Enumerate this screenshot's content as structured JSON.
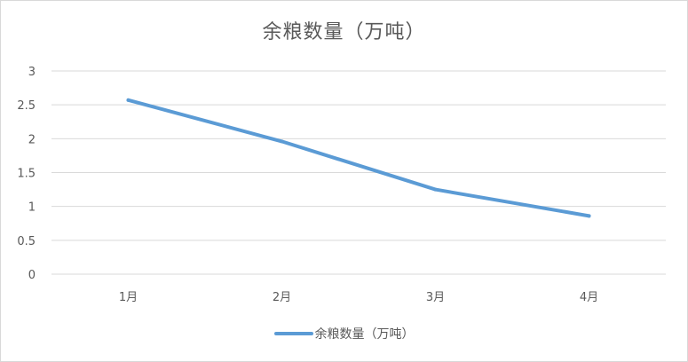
{
  "chart_data": {
    "type": "line",
    "title": "余粮数量（万吨）",
    "categories": [
      "1月",
      "2月",
      "3月",
      "4月"
    ],
    "series": [
      {
        "name": "余粮数量（万吨）",
        "values": [
          2.57,
          1.96,
          1.25,
          0.86
        ],
        "color": "#5b9bd5"
      }
    ],
    "ylim": [
      0,
      3
    ],
    "yticks": [
      "0",
      "0.5",
      "1",
      "1.5",
      "2",
      "2.5",
      "3"
    ],
    "xlabel": "",
    "ylabel": "",
    "grid": true,
    "legend": "bottom"
  }
}
